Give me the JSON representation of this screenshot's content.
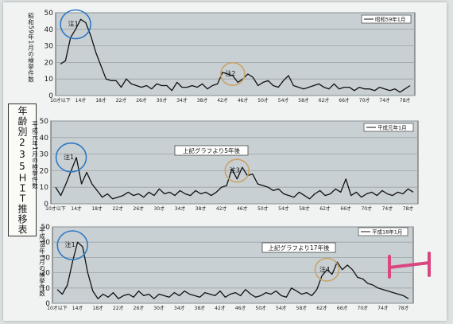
{
  "side_title": "年齢別235ＨＩＴ推移表",
  "colors": {
    "blue_circle": "#2f79c4",
    "tan_circle": "#c9a36a",
    "marker": "#d94680",
    "line": "#111111"
  },
  "chart_data": [
    {
      "type": "line",
      "ylabel": "昭和59年1月の検挙件数",
      "legend": "昭和59年1月",
      "ylim": [
        0,
        50
      ],
      "yticks": [
        0,
        10,
        20,
        30,
        40,
        50
      ],
      "xlim": [
        10,
        79
      ],
      "xticks": [
        "10才以下",
        "14才",
        "18才",
        "22才",
        "26才",
        "30才",
        "34才",
        "38才",
        "42才",
        "46才",
        "50才",
        "54才",
        "58才",
        "62才",
        "66才",
        "70才",
        "74才",
        "78才"
      ],
      "x": [
        10,
        11,
        12,
        13,
        14,
        15,
        16,
        17,
        18,
        19,
        20,
        21,
        22,
        23,
        24,
        25,
        26,
        27,
        28,
        29,
        30,
        31,
        32,
        33,
        34,
        35,
        36,
        37,
        38,
        39,
        40,
        41,
        42,
        43,
        44,
        45,
        46,
        47,
        48,
        49,
        50,
        51,
        52,
        53,
        54,
        55,
        56,
        57,
        58,
        59,
        60,
        61,
        62,
        63,
        64,
        65,
        66,
        67,
        68,
        69,
        70,
        71,
        72,
        73,
        74,
        75,
        76,
        77,
        78,
        79
      ],
      "values": [
        19,
        21,
        35,
        40,
        46,
        44,
        36,
        26,
        18,
        10,
        9,
        9,
        5,
        10,
        7,
        6,
        5,
        6,
        4,
        7,
        6,
        6,
        3,
        8,
        5,
        5,
        6,
        5,
        7,
        4,
        6,
        7,
        14,
        13,
        12,
        8,
        10,
        13,
        11,
        6,
        8,
        9,
        6,
        5,
        9,
        12,
        6,
        5,
        4,
        5,
        6,
        7,
        5,
        4,
        7,
        4,
        5,
        5,
        3,
        5,
        4,
        4,
        3,
        5,
        4,
        3,
        4,
        2,
        4,
        6
      ],
      "annotations": [
        {
          "label": "注1",
          "x": 13,
          "y": 43,
          "color": "blue"
        },
        {
          "label": "注2",
          "x": 44,
          "y": 13,
          "color": "tan"
        }
      ]
    },
    {
      "type": "line",
      "ylabel": "平成元年1月の検挙件数",
      "legend": "平成元年1月",
      "note": "上記グラフより5年後",
      "ylim": [
        0,
        50
      ],
      "yticks": [
        0,
        10,
        20,
        30,
        40,
        50
      ],
      "xlim": [
        10,
        79
      ],
      "xticks": [
        "10才以下",
        "14才",
        "18才",
        "22才",
        "26才",
        "30才",
        "34才",
        "38才",
        "42才",
        "46才",
        "50才",
        "54才",
        "58才",
        "62才",
        "66才",
        "70才",
        "74才",
        "78才"
      ],
      "x": [
        10,
        11,
        12,
        13,
        14,
        15,
        16,
        17,
        18,
        19,
        20,
        21,
        22,
        23,
        24,
        25,
        26,
        27,
        28,
        29,
        30,
        31,
        32,
        33,
        34,
        35,
        36,
        37,
        38,
        39,
        40,
        41,
        42,
        43,
        44,
        45,
        46,
        47,
        48,
        49,
        50,
        51,
        52,
        53,
        54,
        55,
        56,
        57,
        58,
        59,
        60,
        61,
        62,
        63,
        64,
        65,
        66,
        67,
        68,
        69,
        70,
        71,
        72,
        73,
        74,
        75,
        76,
        77,
        78,
        79
      ],
      "values": [
        10,
        5,
        12,
        20,
        28,
        12,
        19,
        12,
        8,
        4,
        6,
        3,
        4,
        5,
        7,
        5,
        6,
        4,
        7,
        5,
        9,
        6,
        7,
        5,
        8,
        6,
        5,
        8,
        6,
        7,
        5,
        7,
        10,
        11,
        21,
        15,
        22,
        17,
        18,
        12,
        11,
        10,
        8,
        9,
        6,
        5,
        4,
        7,
        5,
        3,
        6,
        8,
        5,
        6,
        9,
        7,
        15,
        5,
        7,
        4,
        6,
        7,
        5,
        8,
        6,
        5,
        7,
        6,
        9,
        7
      ],
      "annotations": [
        {
          "label": "注1",
          "x": 13,
          "y": 28,
          "color": "blue"
        },
        {
          "label": "注3",
          "x": 45,
          "y": 20,
          "color": "tan"
        }
      ]
    },
    {
      "type": "line",
      "ylabel": "平成18年1月の検挙件数",
      "legend": "平成18年1月",
      "note": "上記グラフより17年後",
      "ylim": [
        0,
        50
      ],
      "yticks": [
        0,
        10,
        20,
        30,
        40,
        50
      ],
      "xlim": [
        10,
        79
      ],
      "xticks": [
        "10才以下",
        "14才",
        "18才",
        "22才",
        "26才",
        "30才",
        "34才",
        "38才",
        "42才",
        "46才",
        "50才",
        "54才",
        "58才",
        "62才",
        "66才",
        "70才",
        "74才",
        "78才"
      ],
      "x": [
        10,
        11,
        12,
        13,
        14,
        15,
        16,
        17,
        18,
        19,
        20,
        21,
        22,
        23,
        24,
        25,
        26,
        27,
        28,
        29,
        30,
        31,
        32,
        33,
        34,
        35,
        36,
        37,
        38,
        39,
        40,
        41,
        42,
        43,
        44,
        45,
        46,
        47,
        48,
        49,
        50,
        51,
        52,
        53,
        54,
        55,
        56,
        57,
        58,
        59,
        60,
        61,
        62,
        63,
        64,
        65,
        66,
        67,
        68,
        69,
        70,
        71,
        72,
        73,
        74,
        75,
        76,
        77,
        78,
        79
      ],
      "values": [
        9,
        6,
        12,
        27,
        40,
        37,
        20,
        8,
        3,
        6,
        4,
        7,
        3,
        5,
        6,
        4,
        8,
        5,
        6,
        3,
        6,
        5,
        4,
        7,
        5,
        8,
        6,
        5,
        4,
        7,
        6,
        5,
        8,
        4,
        6,
        7,
        5,
        9,
        6,
        4,
        5,
        7,
        6,
        8,
        5,
        4,
        10,
        8,
        6,
        7,
        5,
        9,
        18,
        22,
        19,
        27,
        22,
        25,
        22,
        17,
        16,
        13,
        12,
        10,
        9,
        8,
        7,
        6,
        5,
        3
      ],
      "annotations": [
        {
          "label": "注1",
          "x": 13,
          "y": 38,
          "color": "blue"
        },
        {
          "label": "注4",
          "x": 63,
          "y": 22,
          "color": "tan"
        }
      ]
    }
  ]
}
